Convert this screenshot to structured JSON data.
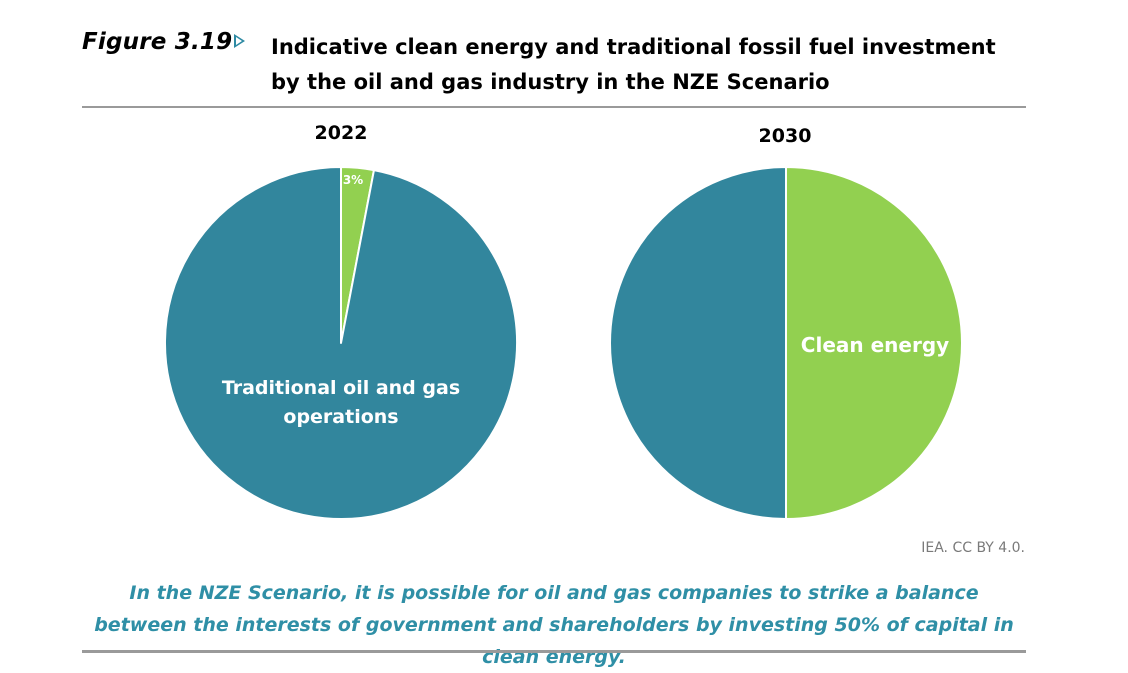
{
  "figure": {
    "label": "Figure 3.19",
    "title": "Indicative clean energy and traditional fossil fuel investment by the oil and gas industry in the NZE Scenario",
    "source": "IEA. CC BY 4.0.",
    "caption": "In the NZE Scenario, it is possible for oil and gas companies to strike a balance between the interests of government and shareholders by investing 50% of capital in clean energy."
  },
  "colors": {
    "traditional": "#32869d",
    "clean": "#92d050",
    "accent": "#2e8aa3"
  },
  "chart_data": [
    {
      "type": "pie",
      "title": "2022",
      "slices": [
        {
          "label": "",
          "value": 3,
          "color": "#92d050",
          "data_label": "3%"
        },
        {
          "label": "Traditional oil and gas operations",
          "value": 97,
          "color": "#32869d",
          "data_label": "Traditional oil and gas operations"
        }
      ]
    },
    {
      "type": "pie",
      "title": "2030",
      "slices": [
        {
          "label": "Clean energy",
          "value": 50,
          "color": "#92d050",
          "data_label": "Clean energy"
        },
        {
          "label": "",
          "value": 50,
          "color": "#32869d",
          "data_label": ""
        }
      ]
    }
  ]
}
